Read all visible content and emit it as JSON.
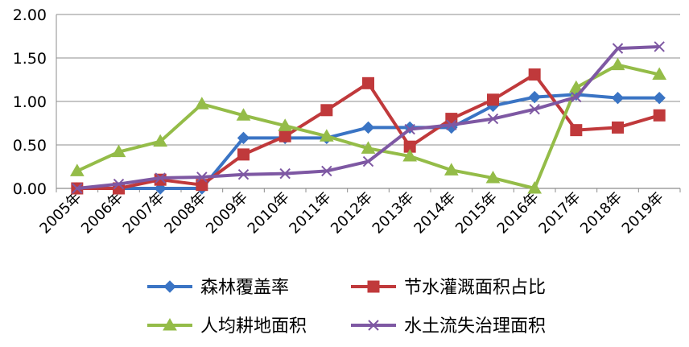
{
  "chart_data": {
    "type": "line",
    "title": "",
    "xlabel": "",
    "ylabel": "",
    "categories": [
      "2005年",
      "2006年",
      "2007年",
      "2008年",
      "2009年",
      "2010年",
      "2011年",
      "2012年",
      "2013年",
      "2014年",
      "2015年",
      "2016年",
      "2017年",
      "2018年",
      "2019年"
    ],
    "ylim": [
      0,
      2
    ],
    "yticks": [
      "0.00",
      "0.50",
      "1.00",
      "1.50",
      "2.00"
    ],
    "grid": true,
    "legend_position": "bottom",
    "series": [
      {
        "name": "森林覆盖率",
        "color": "#3a74c4",
        "marker": "diamond",
        "values": [
          0.0,
          0.0,
          0.0,
          0.0,
          0.58,
          0.58,
          0.58,
          0.7,
          0.7,
          0.7,
          0.95,
          1.05,
          1.08,
          1.04,
          1.04
        ]
      },
      {
        "name": "节水灌溉面积占比",
        "color": "#c0393b",
        "marker": "square",
        "values": [
          0.0,
          0.0,
          0.1,
          0.04,
          0.39,
          0.6,
          0.9,
          1.21,
          0.48,
          0.8,
          1.02,
          1.31,
          0.67,
          0.7,
          0.84
        ]
      },
      {
        "name": "人均耕地面积",
        "color": "#94bc48",
        "marker": "triangle",
        "values": [
          0.2,
          0.42,
          0.54,
          0.97,
          0.84,
          0.72,
          0.6,
          0.46,
          0.37,
          0.21,
          0.12,
          0.0,
          1.16,
          1.42,
          1.31
        ]
      },
      {
        "name": "水土流失治理面积",
        "color": "#7e58a3",
        "marker": "x",
        "values": [
          0.0,
          0.05,
          0.12,
          0.13,
          0.16,
          0.17,
          0.2,
          0.31,
          0.68,
          0.73,
          0.8,
          0.91,
          1.05,
          1.61,
          1.63
        ]
      }
    ]
  }
}
